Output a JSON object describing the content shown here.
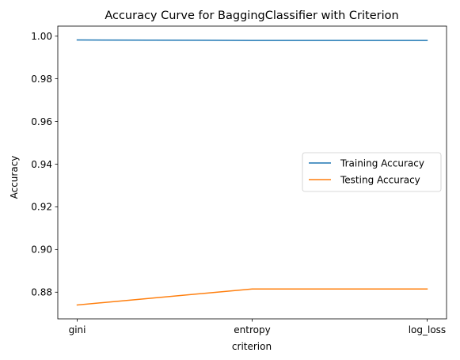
{
  "chart_data": {
    "type": "line",
    "title": "Accuracy Curve for BaggingClassifier with Criterion",
    "xlabel": "criterion",
    "ylabel": "Accuracy",
    "categories": [
      "gini",
      "entropy",
      "log_loss"
    ],
    "series": [
      {
        "name": "Training Accuracy",
        "values": [
          0.9982,
          0.998,
          0.998
        ],
        "color": "#1f77b4"
      },
      {
        "name": "Testing Accuracy",
        "values": [
          0.874,
          0.8815,
          0.8815
        ],
        "color": "#ff7f0e"
      }
    ],
    "ylim": [
      0.8675,
      1.0047
    ],
    "yticks": [
      "0.88",
      "0.90",
      "0.92",
      "0.94",
      "0.96",
      "0.98",
      "1.00"
    ],
    "grid": false,
    "legend_position": "center-right"
  }
}
